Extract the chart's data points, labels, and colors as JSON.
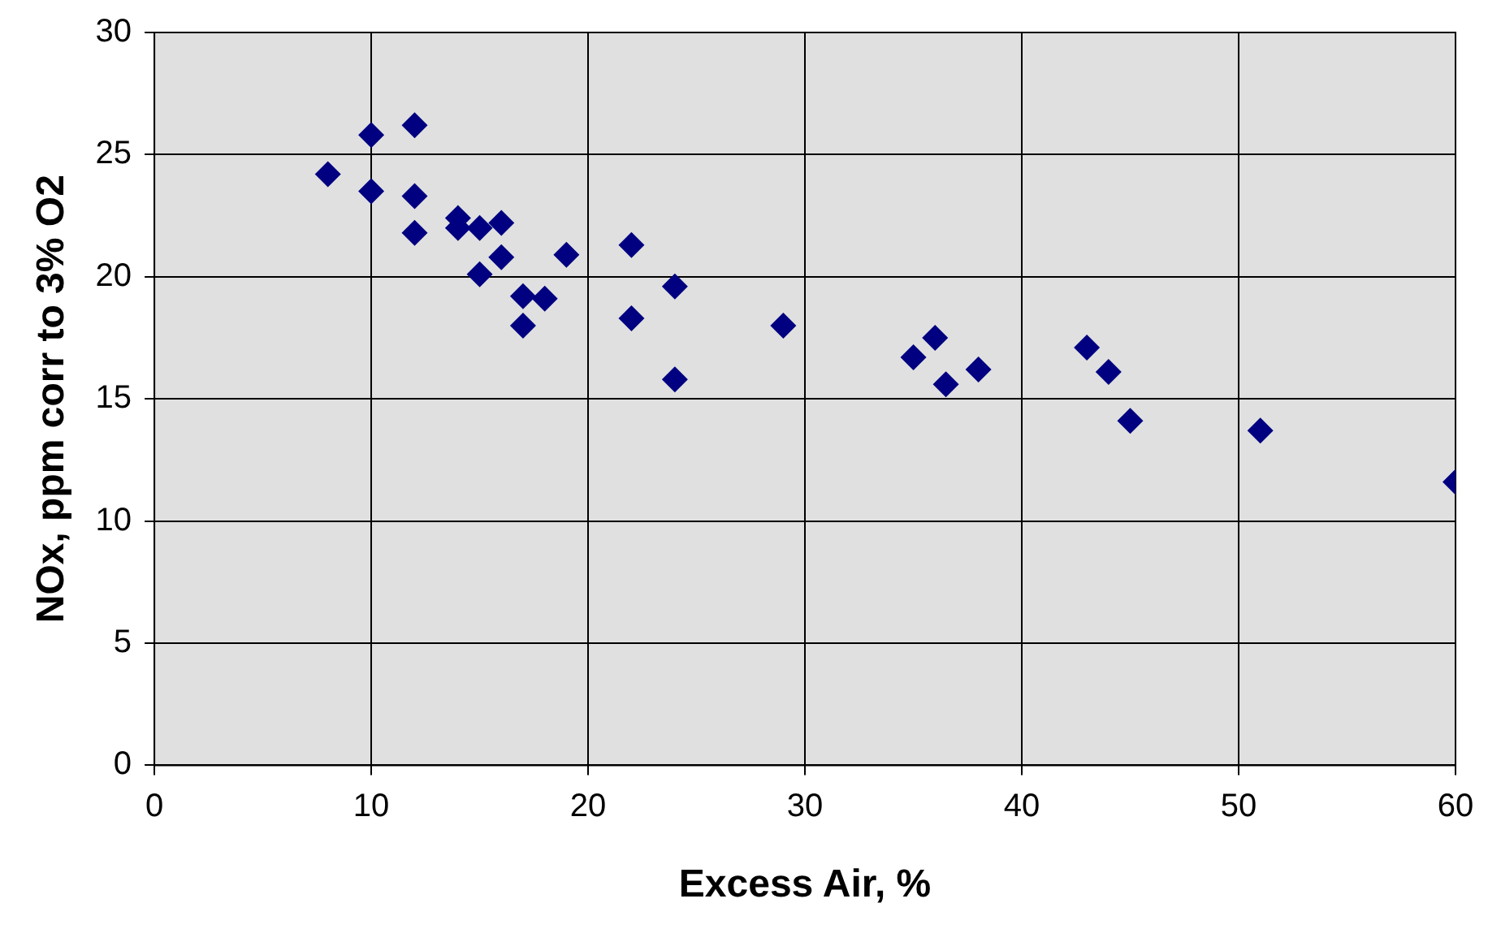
{
  "chart_data": {
    "type": "scatter",
    "xlabel": "Excess Air, %",
    "ylabel": "NOx, ppm corr to 3% O2",
    "x": [
      8,
      10,
      10,
      12,
      12,
      12,
      14,
      14,
      15,
      16,
      16,
      15,
      17,
      17,
      18,
      19,
      22,
      22,
      24,
      24,
      29,
      35,
      36,
      36.5,
      38,
      43,
      44,
      45,
      51,
      60
    ],
    "series": [
      {
        "color": "#000080",
        "values": [
          24.2,
          25.8,
          23.5,
          26.2,
          23.3,
          21.8,
          22.4,
          22.0,
          22.0,
          22.2,
          20.8,
          20.1,
          19.2,
          18.0,
          19.1,
          20.9,
          21.3,
          18.3,
          19.6,
          15.8,
          18.0,
          16.7,
          17.5,
          15.6,
          16.2,
          17.1,
          16.1,
          14.1,
          13.7,
          11.6
        ]
      }
    ],
    "xlim": [
      0,
      60
    ],
    "xticks": [
      0,
      10,
      20,
      30,
      40,
      50,
      60
    ],
    "ylim": [
      0,
      30
    ],
    "yticks": [
      0,
      5,
      10,
      15,
      20,
      25,
      30
    ],
    "grid": true,
    "legend": false,
    "marker": "diamond"
  }
}
